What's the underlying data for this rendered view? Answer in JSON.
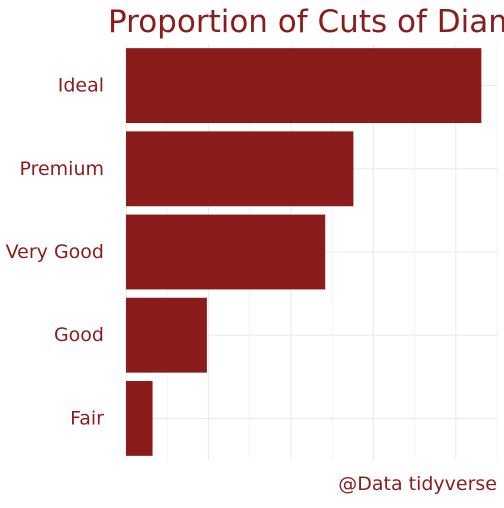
{
  "chart_data": {
    "type": "bar",
    "orientation": "horizontal",
    "title": "Proportion of Cuts of Diam",
    "caption": "@Data tidyverse",
    "categories": [
      "Ideal",
      "Premium",
      "Very Good",
      "Good",
      "Fair"
    ],
    "values": [
      21551,
      13791,
      12082,
      4906,
      1610
    ],
    "xlim": [
      0,
      22500
    ],
    "grid": true,
    "colors": {
      "bar": "#8b1c1c",
      "text": "#8b1c1c",
      "grid": "#ebebeb"
    }
  }
}
